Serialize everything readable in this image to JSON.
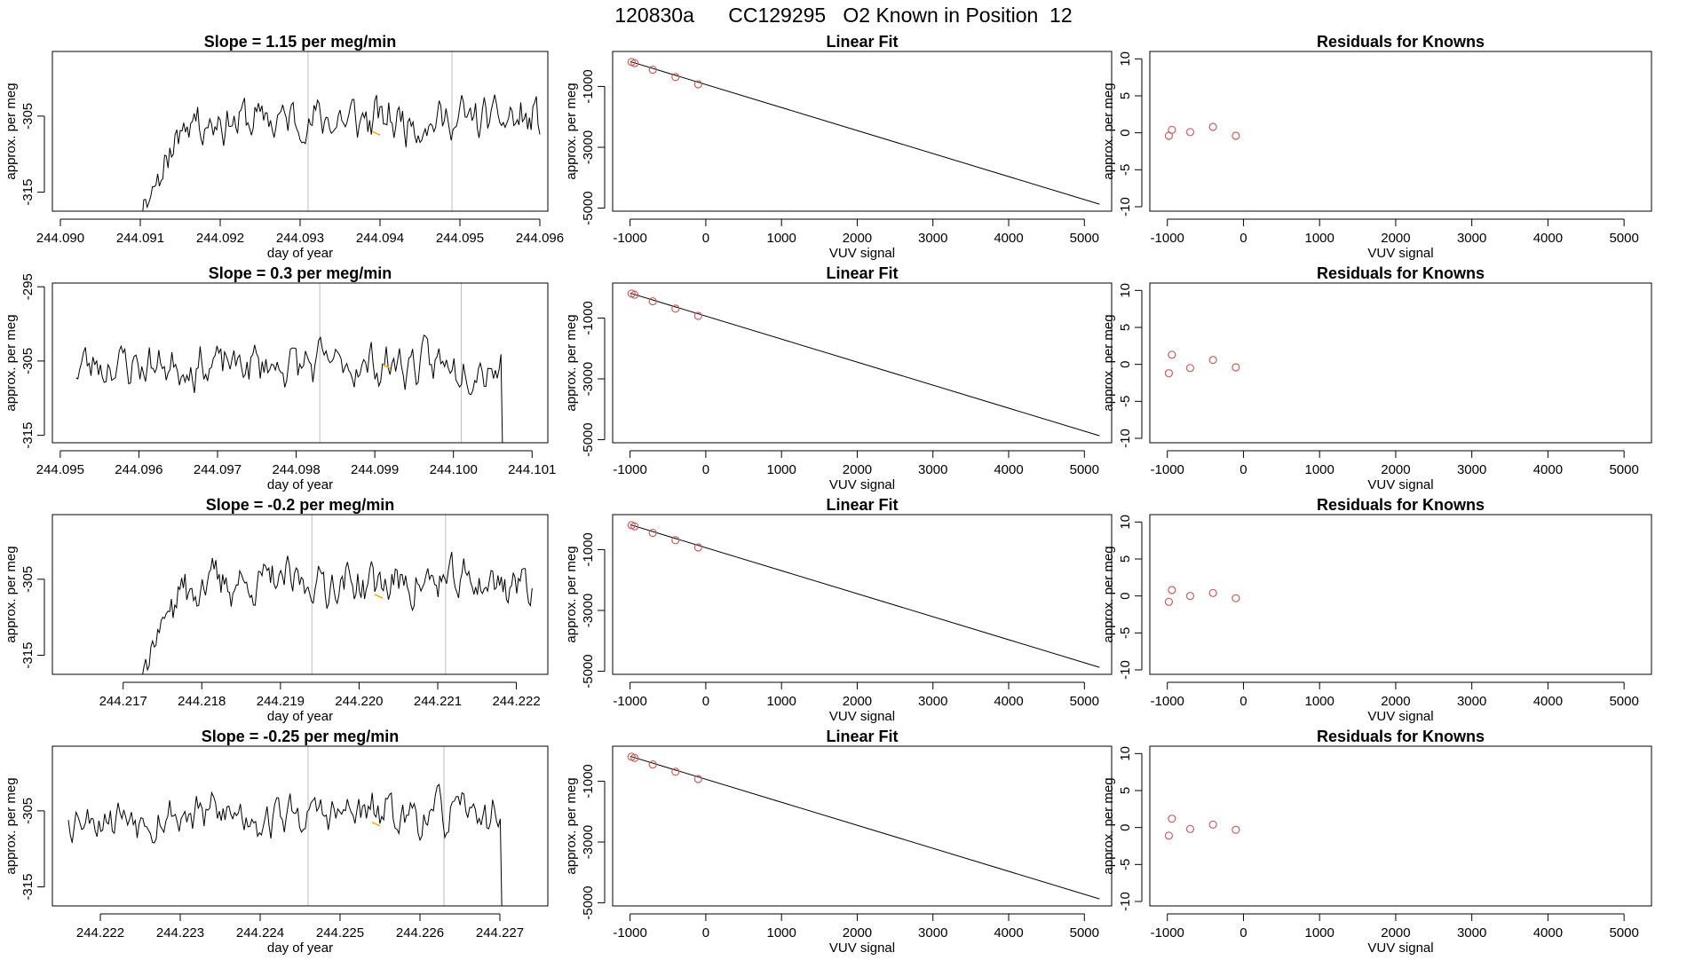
{
  "header": {
    "run_id": "120830a",
    "cylinder": "CC129295",
    "description": "O2 Known in Position  12"
  },
  "colors": {
    "trace": "#000000",
    "gridline": "#bebebe",
    "highlight": "#ffa500",
    "points": "#cd5c5c",
    "fit_line": "#000000"
  },
  "chart_data": [
    {
      "row": 0,
      "type": "line",
      "title": "Slope =  1.15  per meg/min",
      "xlabel": "day of year",
      "ylabel": "approx. per meg",
      "xlim": [
        244.0899,
        244.0961
      ],
      "ylim": [
        -317.5,
        -296.5
      ],
      "xticks": [
        "244.090",
        "244.091",
        "244.092",
        "244.093",
        "244.094",
        "244.095",
        "244.096"
      ],
      "yticks": [
        "-305",
        "-315"
      ],
      "vlines": [
        244.0931,
        244.0949
      ],
      "start": 244.091,
      "end": 244.096,
      "highlight": {
        "x": [
          244.0939,
          244.094
        ],
        "y": [
          -307.0,
          -307.5
        ]
      },
      "grid": false,
      "seed": 11
    },
    {
      "row": 0,
      "type": "scatter",
      "title": "Linear Fit",
      "xlabel": "VUV signal",
      "ylabel": "approx. per meg",
      "xlim": [
        -1230,
        5360
      ],
      "ylim": [
        -5100,
        150
      ],
      "xticks": [
        "-1000",
        "0",
        "1000",
        "2000",
        "3000",
        "4000",
        "5000"
      ],
      "yticks": [
        "-1000",
        "-3000",
        "-5000"
      ],
      "x": [
        -980,
        -940,
        -700,
        -400,
        -100
      ],
      "y": [
        -195,
        -235,
        -450,
        -690,
        -930
      ],
      "fit": {
        "x": [
          -1000,
          5200
        ],
        "y": [
          -180,
          -4870
        ]
      }
    },
    {
      "row": 0,
      "type": "scatter",
      "title": "Residuals for Knowns",
      "xlabel": "VUV signal",
      "ylabel": "approx. per meg",
      "xlim": [
        -1230,
        5360
      ],
      "ylim": [
        -10.6,
        11
      ],
      "xticks": [
        "-1000",
        "0",
        "1000",
        "2000",
        "3000",
        "4000",
        "5000"
      ],
      "yticks": [
        "10",
        "5",
        "0",
        "-5",
        "-10"
      ],
      "x": [
        -980,
        -940,
        -700,
        -400,
        -100
      ],
      "y": [
        -0.4,
        0.4,
        0.1,
        0.8,
        -0.4
      ]
    },
    {
      "row": 1,
      "type": "line",
      "title": "Slope =  0.3  per meg/min",
      "xlabel": "day of year",
      "ylabel": "approx. per meg",
      "xlim": [
        244.0949,
        244.1012
      ],
      "ylim": [
        -316,
        -294.5
      ],
      "xticks": [
        "244.095",
        "244.096",
        "244.097",
        "244.098",
        "244.099",
        "244.100",
        "244.101"
      ],
      "yticks": [
        "-295",
        "-305",
        "-315"
      ],
      "vlines": [
        244.0983,
        244.1001
      ],
      "start": 244.0952,
      "end": 244.1007,
      "highlight": {
        "x": [
          244.0991,
          244.0992
        ],
        "y": [
          -305.5,
          -306.0
        ]
      },
      "grid": false,
      "seed": 23
    },
    {
      "row": 1,
      "type": "scatter",
      "title": "Linear Fit",
      "xlabel": "VUV signal",
      "ylabel": "approx. per meg",
      "xlim": [
        -1230,
        5360
      ],
      "ylim": [
        -5100,
        150
      ],
      "xticks": [
        "-1000",
        "0",
        "1000",
        "2000",
        "3000",
        "4000",
        "5000"
      ],
      "yticks": [
        "-1000",
        "-3000",
        "-5000"
      ],
      "x": [
        -980,
        -940,
        -700,
        -400,
        -100
      ],
      "y": [
        -195,
        -235,
        -450,
        -690,
        -930
      ],
      "fit": {
        "x": [
          -1000,
          5200
        ],
        "y": [
          -180,
          -4870
        ]
      }
    },
    {
      "row": 1,
      "type": "scatter",
      "title": "Residuals for Knowns",
      "xlabel": "VUV signal",
      "ylabel": "approx. per meg",
      "xlim": [
        -1230,
        5360
      ],
      "ylim": [
        -10.6,
        11
      ],
      "xticks": [
        "-1000",
        "0",
        "1000",
        "2000",
        "3000",
        "4000",
        "5000"
      ],
      "yticks": [
        "10",
        "5",
        "0",
        "-5",
        "-10"
      ],
      "x": [
        -980,
        -940,
        -700,
        -400,
        -100
      ],
      "y": [
        -1.2,
        1.3,
        -0.5,
        0.6,
        -0.4
      ]
    },
    {
      "row": 2,
      "type": "line",
      "title": "Slope =  -0.2  per meg/min",
      "xlabel": "day of year",
      "ylabel": "approx. per meg",
      "xlim": [
        244.2161,
        244.2224
      ],
      "ylim": [
        -317.5,
        -296.5
      ],
      "xticks": [
        "244.217",
        "244.218",
        "244.219",
        "244.220",
        "244.221",
        "244.222"
      ],
      "yticks": [
        "-305",
        "-315"
      ],
      "vlines": [
        244.2194,
        244.2211
      ],
      "start": 244.2172,
      "end": 244.2222,
      "highlight": {
        "x": [
          244.2202,
          244.2203
        ],
        "y": [
          -307.0,
          -307.5
        ]
      },
      "grid": false,
      "seed": 37
    },
    {
      "row": 2,
      "type": "scatter",
      "title": "Linear Fit",
      "xlabel": "VUV signal",
      "ylabel": "approx. per meg",
      "xlim": [
        -1230,
        5360
      ],
      "ylim": [
        -5100,
        150
      ],
      "xticks": [
        "-1000",
        "0",
        "1000",
        "2000",
        "3000",
        "4000",
        "5000"
      ],
      "yticks": [
        "-1000",
        "-3000",
        "-5000"
      ],
      "x": [
        -980,
        -940,
        -700,
        -400,
        -100
      ],
      "y": [
        -195,
        -235,
        -450,
        -690,
        -930
      ],
      "fit": {
        "x": [
          -1000,
          5200
        ],
        "y": [
          -180,
          -4870
        ]
      }
    },
    {
      "row": 2,
      "type": "scatter",
      "title": "Residuals for Knowns",
      "xlabel": "VUV signal",
      "ylabel": "approx. per meg",
      "xlim": [
        -1230,
        5360
      ],
      "ylim": [
        -10.6,
        11
      ],
      "xticks": [
        "-1000",
        "0",
        "1000",
        "2000",
        "3000",
        "4000",
        "5000"
      ],
      "yticks": [
        "10",
        "5",
        "0",
        "-5",
        "-10"
      ],
      "x": [
        -980,
        -940,
        -700,
        -400,
        -100
      ],
      "y": [
        -0.8,
        0.8,
        0.0,
        0.4,
        -0.3
      ]
    },
    {
      "row": 3,
      "type": "line",
      "title": "Slope =  -0.25  per meg/min",
      "xlabel": "day of year",
      "ylabel": "approx. per meg",
      "xlim": [
        244.2214,
        244.2276
      ],
      "ylim": [
        -317.5,
        -296.5
      ],
      "xticks": [
        "244.222",
        "244.223",
        "244.224",
        "244.225",
        "244.226",
        "244.227"
      ],
      "yticks": [
        "-305",
        "-315"
      ],
      "vlines": [
        244.2246,
        244.2263
      ],
      "start": 244.2216,
      "end": 244.2271,
      "highlight": {
        "x": [
          244.2254,
          244.2255
        ],
        "y": [
          -306.5,
          -307.0
        ]
      },
      "grid": false,
      "seed": 53
    },
    {
      "row": 3,
      "type": "scatter",
      "title": "Linear Fit",
      "xlabel": "VUV signal",
      "ylabel": "approx. per meg",
      "xlim": [
        -1230,
        5360
      ],
      "ylim": [
        -5100,
        150
      ],
      "xticks": [
        "-1000",
        "0",
        "1000",
        "2000",
        "3000",
        "4000",
        "5000"
      ],
      "yticks": [
        "-1000",
        "-3000",
        "-5000"
      ],
      "x": [
        -980,
        -940,
        -700,
        -400,
        -100
      ],
      "y": [
        -195,
        -235,
        -450,
        -690,
        -930
      ],
      "fit": {
        "x": [
          -1000,
          5200
        ],
        "y": [
          -180,
          -4870
        ]
      }
    },
    {
      "row": 3,
      "type": "scatter",
      "title": "Residuals for Knowns",
      "xlabel": "VUV signal",
      "ylabel": "approx. per meg",
      "xlim": [
        -1230,
        5360
      ],
      "ylim": [
        -10.6,
        11
      ],
      "xticks": [
        "-1000",
        "0",
        "1000",
        "2000",
        "3000",
        "4000",
        "5000"
      ],
      "yticks": [
        "10",
        "5",
        "0",
        "-5",
        "-10"
      ],
      "x": [
        -980,
        -940,
        -700,
        -400,
        -100
      ],
      "y": [
        -1.1,
        1.2,
        -0.2,
        0.4,
        -0.3
      ]
    }
  ]
}
